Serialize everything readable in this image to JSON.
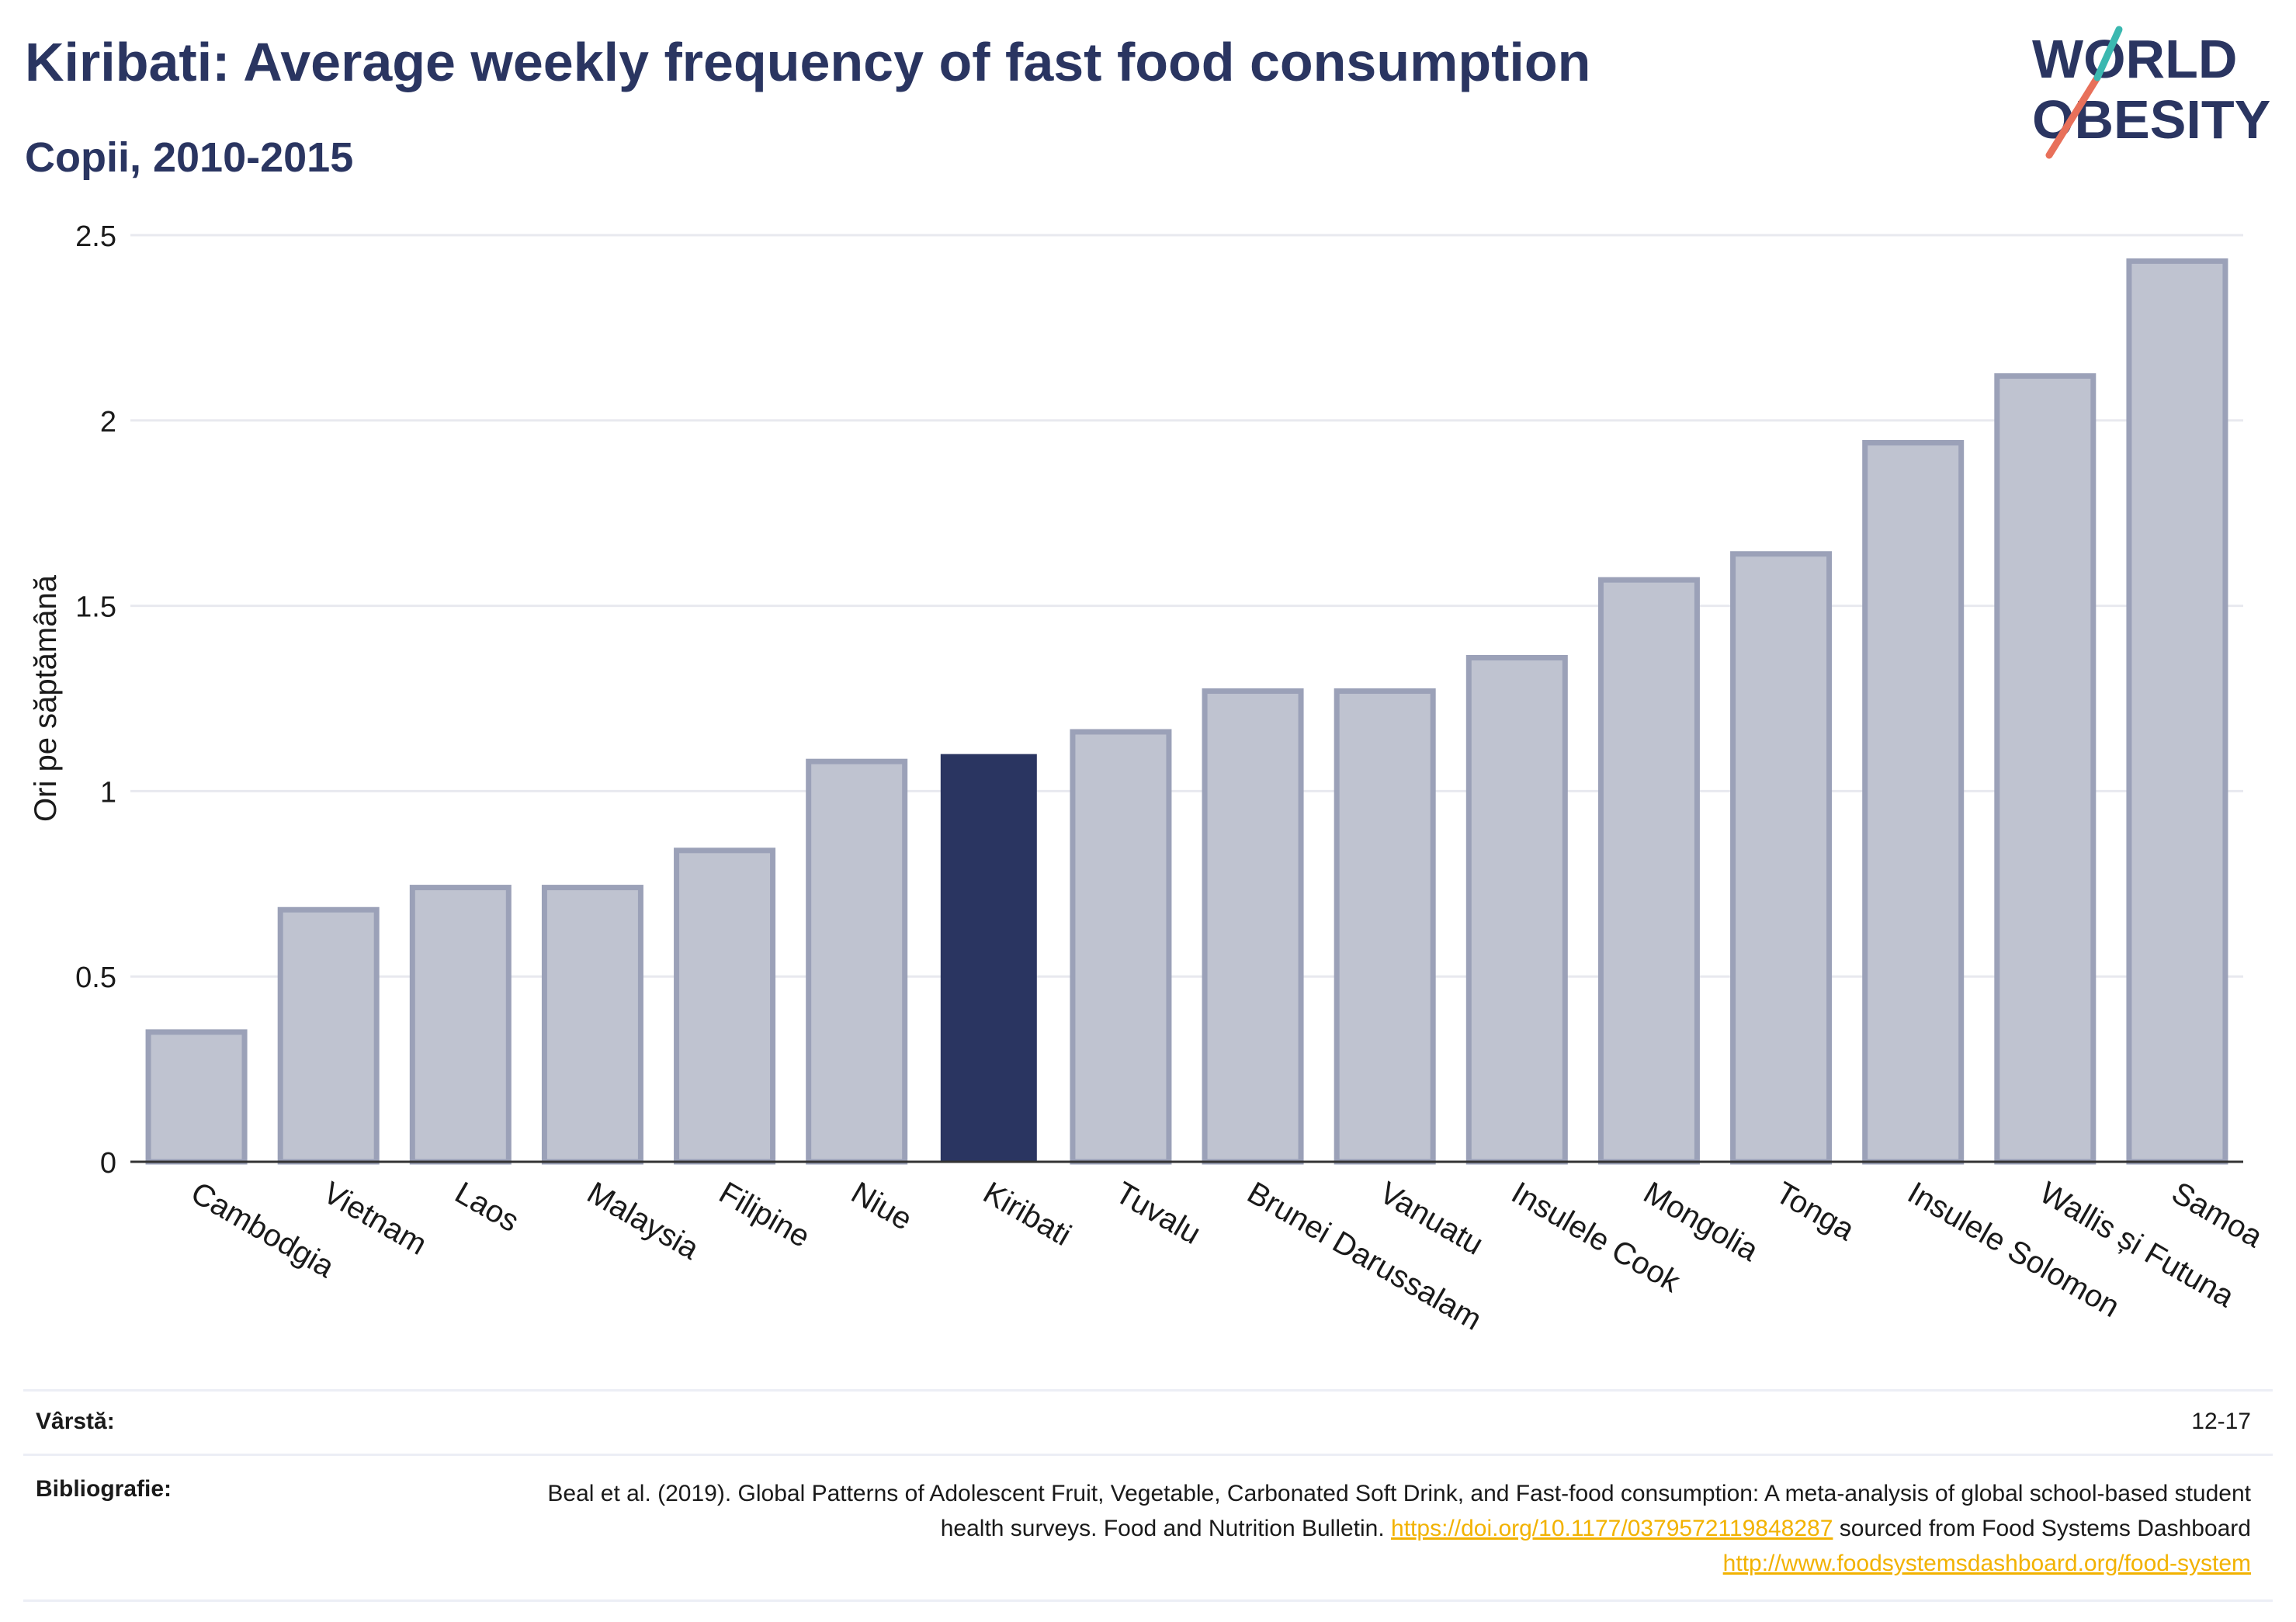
{
  "header": {
    "title": "Kiribati: Average weekly frequency of fast food consumption",
    "subtitle": "Copii, 2010-2015"
  },
  "logo": {
    "line1": "WORLD",
    "line2": "OBESITY"
  },
  "chart_data": {
    "type": "bar",
    "title": "Kiribati: Average weekly frequency of fast food consumption",
    "subtitle": "Copii, 2010-2015",
    "xlabel": "",
    "ylabel": "Ori pe săptămână",
    "ylim": [
      0,
      2.5
    ],
    "yticks": [
      "0",
      "0.5",
      "1",
      "1.5",
      "2",
      "2.5"
    ],
    "ytick_values": [
      0,
      0.5,
      1,
      1.5,
      2,
      2.5
    ],
    "grid": true,
    "highlight": "Kiribati",
    "colors": {
      "bar": "#bfc3d0",
      "bar_border": "#9ba1b8",
      "highlight": "#2a3561"
    },
    "categories": [
      "Cambodgia",
      "Vietnam",
      "Laos",
      "Malaysia",
      "Filipine",
      "Niue",
      "Kiribati",
      "Tuvalu",
      "Brunei Darussalam",
      "Vanuatu",
      "Insulele Cook",
      "Mongolia",
      "Tonga",
      "Insulele Solomon",
      "Wallis și Futuna",
      "Samoa"
    ],
    "values": [
      0.35,
      0.68,
      0.74,
      0.74,
      0.84,
      1.08,
      1.1,
      1.16,
      1.27,
      1.27,
      1.36,
      1.57,
      1.64,
      1.94,
      2.12,
      2.43
    ]
  },
  "footer": {
    "age_label": "Vârstă:",
    "age_value": "12-17",
    "bib_label": "Bibliografie:",
    "bib_text1": "Beal et al. (2019). Global Patterns of Adolescent Fruit, Vegetable, Carbonated Soft Drink, and Fast-food consumption: A meta-analysis of global school-based student health surveys. Food and Nutrition Bulletin. ",
    "bib_link1": "https://doi.org/10.1177/0379572119848287",
    "bib_text2": " sourced from Food Systems Dashboard ",
    "bib_link2": "http://www.foodsystemsdashboard.org/food-system"
  }
}
